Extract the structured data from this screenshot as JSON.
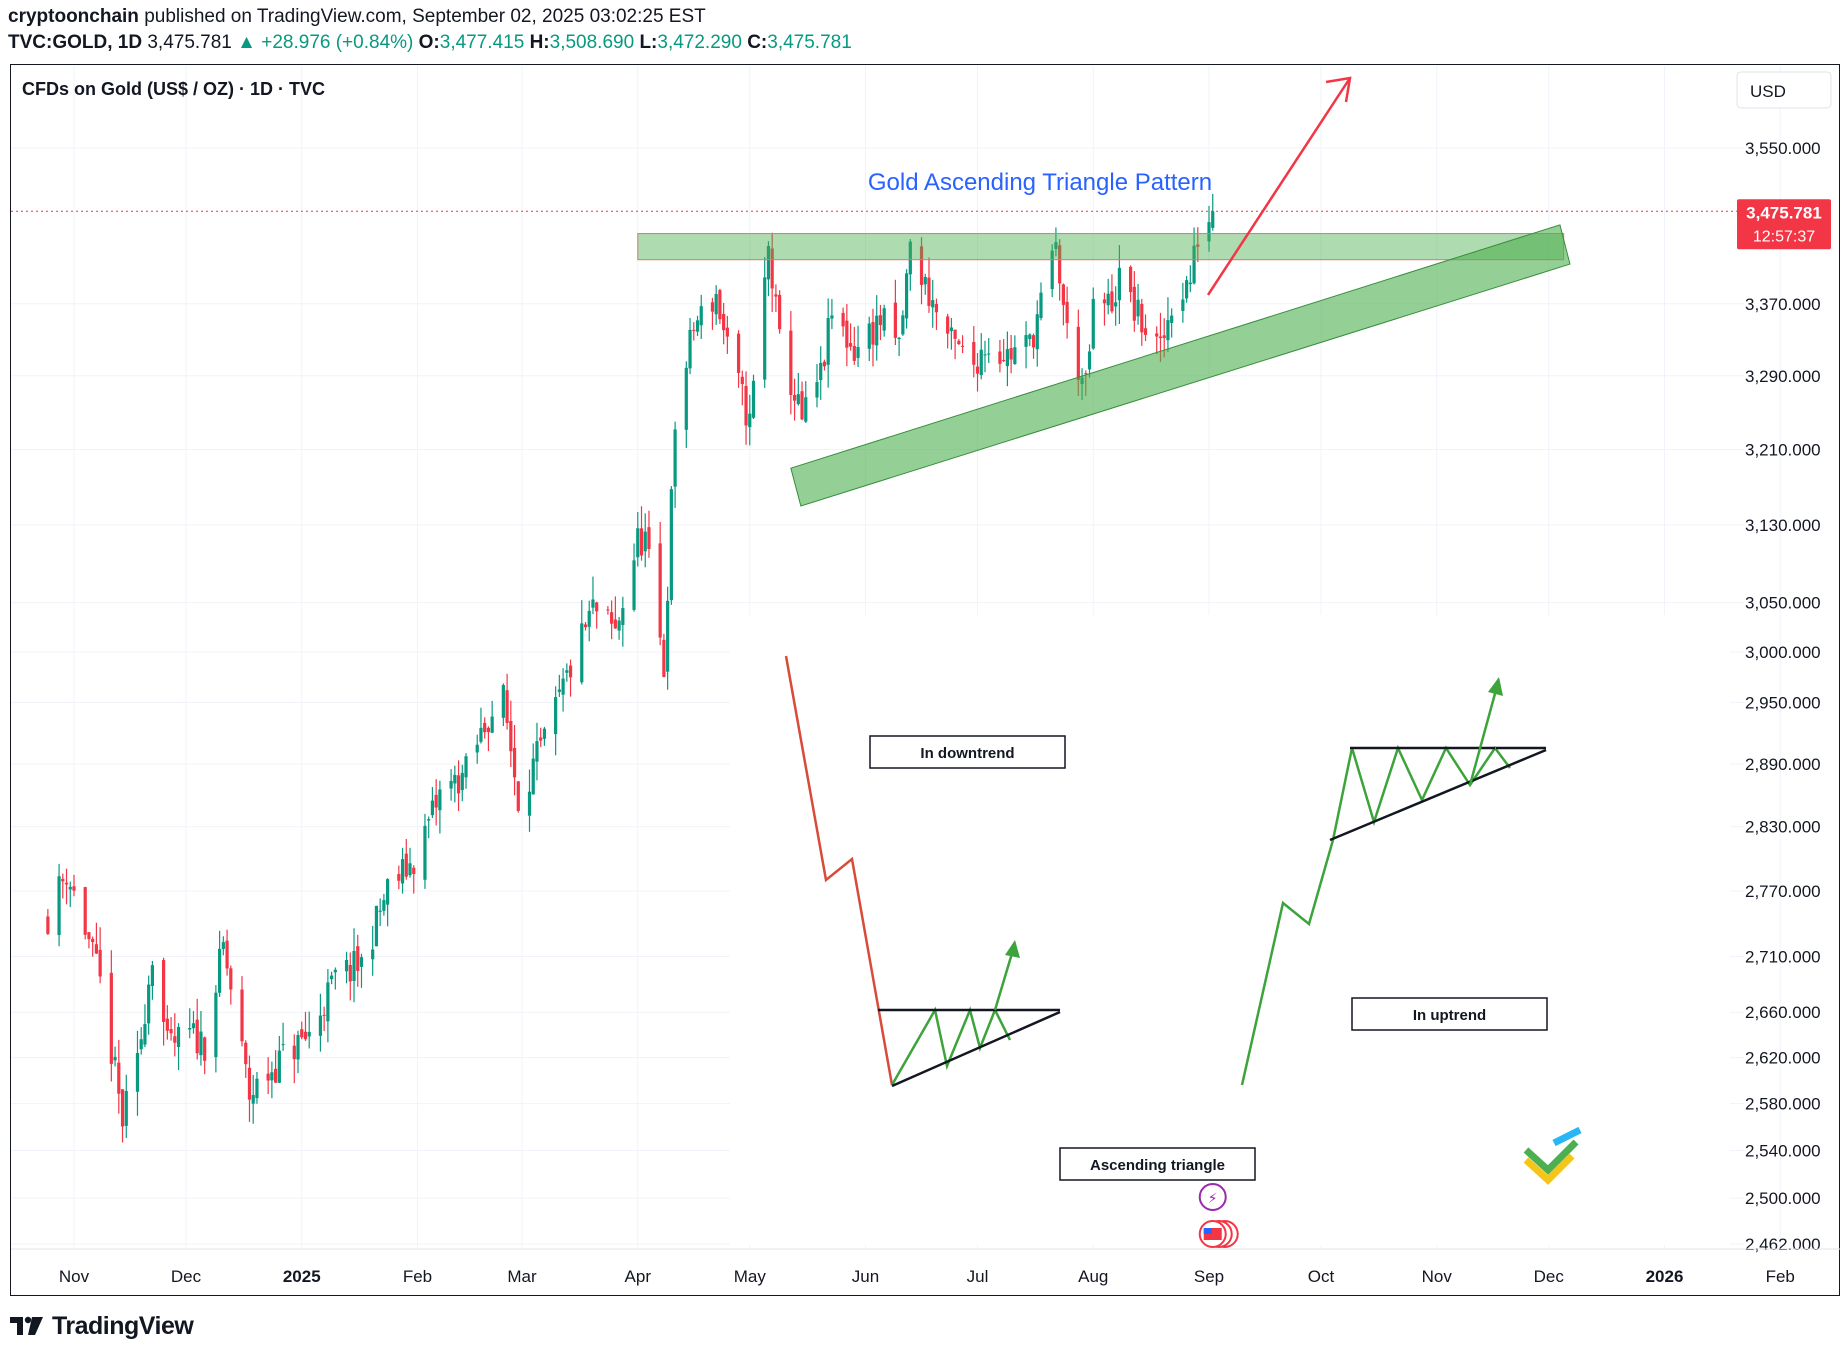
{
  "header": {
    "author": "cryptoonchain",
    "published_text": "published on TradingView.com, September 02, 2025 03:02:25 EST",
    "symbol": "TVC:GOLD, 1D",
    "last": "3,475.781",
    "change": "▲ +28.976 (+0.84%)",
    "o_label": "O:",
    "o_value": "3,477.415",
    "h_label": "H:",
    "h_value": "3,508.690",
    "l_label": "L:",
    "l_value": "3,472.290",
    "c_label": "C:",
    "c_value": "3,475.781"
  },
  "chart_title": "CFDs on Gold (US$ / OZ) · 1D · TVC",
  "currency_button": "USD",
  "price_tag": {
    "price": "3,475.781",
    "countdown": "12:57:37",
    "color": "#f23645"
  },
  "annotations": {
    "pattern_title": "Gold Ascending Triangle Pattern",
    "in_downtrend": "In downtrend",
    "in_uptrend": "In uptrend",
    "ascending_triangle": "Ascending triangle"
  },
  "footer": {
    "brand": "TradingView"
  },
  "colors": {
    "up": "#089981",
    "down": "#f23645",
    "zone": "#4caf50",
    "accent_blue": "#2962ff"
  },
  "chart_data": {
    "type": "candlestick",
    "x_ticks": [
      "Nov",
      "Dec",
      "2025",
      "Feb",
      "Mar",
      "Apr",
      "May",
      "Jun",
      "Jul",
      "Aug",
      "Sep",
      "Oct",
      "Nov",
      "Dec",
      "2026",
      "Feb"
    ],
    "y_ticks": [
      3550,
      3370,
      3290,
      3210,
      3130,
      3050,
      3000,
      2950,
      2890,
      2830,
      2770,
      2710,
      2660,
      2620,
      2580,
      2540,
      2500,
      2462
    ],
    "y_tick_labels": [
      "3,550.000",
      "3,370.000",
      "3,290.000",
      "3,210.000",
      "3,130.000",
      "3,050.000",
      "3,000.000",
      "2,950.000",
      "2,890.000",
      "2,830.000",
      "2,770.000",
      "2,710.000",
      "2,660.000",
      "2,620.000",
      "2,580.000",
      "2,540.000",
      "2,500.000",
      "2,462.000"
    ],
    "ylim": [
      2440,
      3640
    ],
    "scale": "log",
    "last_price": 3475.781,
    "resistance_zone": [
      3420,
      3450
    ],
    "close_anchors": [
      [
        "2024-10-25",
        2747
      ],
      [
        "2024-10-30",
        2788
      ],
      [
        "2024-11-04",
        2736
      ],
      [
        "2024-11-08",
        2685
      ],
      [
        "2024-11-14",
        2565
      ],
      [
        "2024-11-18",
        2613
      ],
      [
        "2024-11-22",
        2715
      ],
      [
        "2024-11-26",
        2628
      ],
      [
        "2024-12-02",
        2640
      ],
      [
        "2024-12-06",
        2633
      ],
      [
        "2024-12-11",
        2718
      ],
      [
        "2024-12-18",
        2587
      ],
      [
        "2024-12-27",
        2621
      ],
      [
        "2025-01-03",
        2640
      ],
      [
        "2025-01-10",
        2690
      ],
      [
        "2025-01-17",
        2703
      ],
      [
        "2025-01-24",
        2771
      ],
      [
        "2025-01-31",
        2798
      ],
      [
        "2025-02-07",
        2860
      ],
      [
        "2025-02-14",
        2882
      ],
      [
        "2025-02-20",
        2936
      ],
      [
        "2025-02-24",
        2952
      ],
      [
        "2025-02-28",
        2858
      ],
      [
        "2025-03-07",
        2910
      ],
      [
        "2025-03-14",
        2984
      ],
      [
        "2025-03-20",
        3043
      ],
      [
        "2025-03-26",
        3019
      ],
      [
        "2025-04-01",
        3113
      ],
      [
        "2025-04-03",
        3115
      ],
      [
        "2025-04-08",
        2983
      ],
      [
        "2025-04-11",
        3237
      ],
      [
        "2025-04-16",
        3344
      ],
      [
        "2025-04-22",
        3380
      ],
      [
        "2025-04-25",
        3319
      ],
      [
        "2025-05-01",
        3238
      ],
      [
        "2025-05-06",
        3432
      ],
      [
        "2025-05-09",
        3325
      ],
      [
        "2025-05-15",
        3240
      ],
      [
        "2025-05-20",
        3289
      ],
      [
        "2025-05-23",
        3357
      ],
      [
        "2025-05-29",
        3318
      ],
      [
        "2025-06-05",
        3352
      ],
      [
        "2025-06-10",
        3322
      ],
      [
        "2025-06-13",
        3433
      ],
      [
        "2025-06-19",
        3370
      ],
      [
        "2025-06-24",
        3325
      ],
      [
        "2025-06-30",
        3303
      ],
      [
        "2025-07-03",
        3325
      ],
      [
        "2025-07-09",
        3313
      ],
      [
        "2025-07-15",
        3325
      ],
      [
        "2025-07-22",
        3431
      ],
      [
        "2025-07-25",
        3337
      ],
      [
        "2025-07-30",
        3274
      ],
      [
        "2025-08-01",
        3362
      ],
      [
        "2025-08-06",
        3372
      ],
      [
        "2025-08-08",
        3398
      ],
      [
        "2025-08-13",
        3355
      ],
      [
        "2025-08-19",
        3315
      ],
      [
        "2025-08-22",
        3371
      ],
      [
        "2025-08-27",
        3397
      ],
      [
        "2025-08-29",
        3447
      ],
      [
        "2025-09-02",
        3475.781
      ]
    ]
  }
}
